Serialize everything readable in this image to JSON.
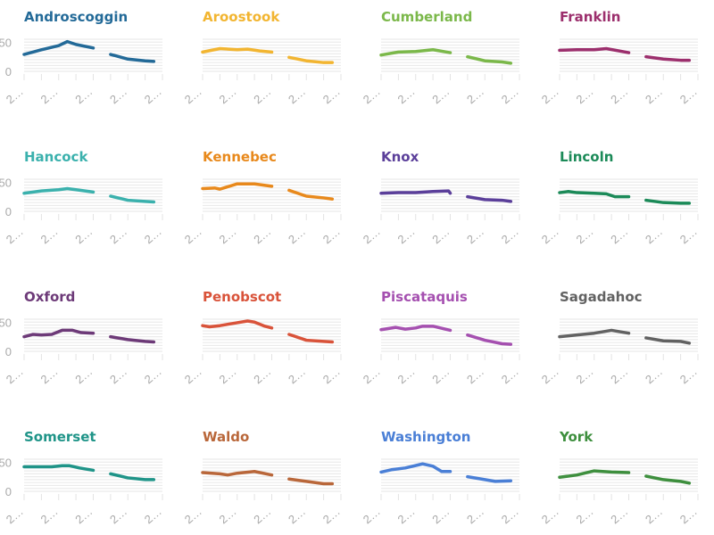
{
  "chart_data": {
    "type": "line",
    "layout": "small-multiples",
    "ylim": [
      0,
      55
    ],
    "yticks": [
      0,
      50
    ],
    "ytick_labels": [
      "0",
      "50"
    ],
    "grid": true,
    "grid_step": 5,
    "xlim": [
      0,
      8
    ],
    "xtick_labels": [
      "2…",
      "2…",
      "2…",
      "2…",
      "2…"
    ],
    "facets": [
      {
        "name": "Androscoggin",
        "color": "#236a98",
        "segments": [
          [
            [
              0,
              29
            ],
            [
              1,
              37
            ],
            [
              2,
              44
            ],
            [
              2.5,
              51
            ],
            [
              3,
              46
            ],
            [
              4,
              40
            ]
          ],
          [
            [
              5,
              29
            ],
            [
              6,
              21
            ],
            [
              7,
              18
            ],
            [
              7.5,
              17
            ]
          ]
        ]
      },
      {
        "name": "Aroostook",
        "color": "#f2b531",
        "segments": [
          [
            [
              0,
              33
            ],
            [
              1,
              39
            ],
            [
              2,
              37
            ],
            [
              2.6,
              38
            ],
            [
              3.3,
              35
            ],
            [
              4,
              33
            ]
          ],
          [
            [
              5,
              24
            ],
            [
              6,
              18
            ],
            [
              7,
              15
            ],
            [
              7.5,
              15
            ]
          ]
        ]
      },
      {
        "name": "Cumberland",
        "color": "#7bb84a",
        "segments": [
          [
            [
              0,
              28
            ],
            [
              1,
              33
            ],
            [
              2,
              34
            ],
            [
              3,
              37
            ],
            [
              4,
              32
            ]
          ],
          [
            [
              5,
              25
            ],
            [
              6,
              18
            ],
            [
              7,
              16
            ],
            [
              7.5,
              14
            ]
          ]
        ]
      },
      {
        "name": "Franklin",
        "color": "#9c2f6d",
        "segments": [
          [
            [
              0,
              36
            ],
            [
              1,
              37
            ],
            [
              2,
              37
            ],
            [
              2.7,
              39
            ],
            [
              4,
              32
            ]
          ],
          [
            [
              5,
              25
            ],
            [
              6,
              21
            ],
            [
              7,
              19
            ],
            [
              7.5,
              19
            ]
          ]
        ]
      },
      {
        "name": "Hancock",
        "color": "#3bb1ad",
        "segments": [
          [
            [
              0,
              31
            ],
            [
              1,
              35
            ],
            [
              2,
              37
            ],
            [
              2.5,
              39
            ],
            [
              3,
              37
            ],
            [
              4,
              33
            ]
          ],
          [
            [
              5,
              26
            ],
            [
              6,
              19
            ],
            [
              7,
              17
            ],
            [
              7.5,
              16
            ]
          ]
        ]
      },
      {
        "name": "Kennebec",
        "color": "#e8891c",
        "segments": [
          [
            [
              0,
              39
            ],
            [
              0.7,
              40
            ],
            [
              1,
              38
            ],
            [
              2,
              47
            ],
            [
              3,
              47
            ],
            [
              4,
              43
            ]
          ],
          [
            [
              5,
              36
            ],
            [
              6,
              26
            ],
            [
              7,
              23
            ],
            [
              7.5,
              21
            ]
          ]
        ]
      },
      {
        "name": "Knox",
        "color": "#5b3f9a",
        "segments": [
          [
            [
              0,
              31
            ],
            [
              1,
              32
            ],
            [
              2,
              32
            ],
            [
              3,
              34
            ],
            [
              3.9,
              35
            ],
            [
              4,
              31
            ]
          ],
          [
            [
              5,
              25
            ],
            [
              6,
              20
            ],
            [
              7,
              19
            ],
            [
              7.5,
              17
            ]
          ]
        ]
      },
      {
        "name": "Lincoln",
        "color": "#1b8a58",
        "segments": [
          [
            [
              0,
              32
            ],
            [
              0.5,
              34
            ],
            [
              1,
              32
            ],
            [
              2,
              31
            ],
            [
              2.7,
              30
            ],
            [
              3.2,
              25
            ],
            [
              4,
              25
            ]
          ],
          [
            [
              5,
              19
            ],
            [
              6,
              15
            ],
            [
              7,
              14
            ],
            [
              7.5,
              14
            ]
          ]
        ]
      },
      {
        "name": "Oxford",
        "color": "#6d3a78",
        "segments": [
          [
            [
              0,
              25
            ],
            [
              0.5,
              29
            ],
            [
              1,
              28
            ],
            [
              1.6,
              29
            ],
            [
              2.2,
              36
            ],
            [
              2.8,
              36
            ],
            [
              3.3,
              32
            ],
            [
              4,
              31
            ]
          ],
          [
            [
              5,
              25
            ],
            [
              6,
              20
            ],
            [
              7,
              17
            ],
            [
              7.5,
              16
            ]
          ]
        ]
      },
      {
        "name": "Penobscot",
        "color": "#d9533a",
        "segments": [
          [
            [
              0,
              44
            ],
            [
              0.4,
              42
            ],
            [
              1,
              44
            ],
            [
              2,
              49
            ],
            [
              2.6,
              52
            ],
            [
              3,
              50
            ],
            [
              3.6,
              43
            ],
            [
              4,
              40
            ]
          ],
          [
            [
              5,
              29
            ],
            [
              6,
              19
            ],
            [
              7,
              17
            ],
            [
              7.5,
              16
            ]
          ]
        ]
      },
      {
        "name": "Piscataquis",
        "color": "#a550b0",
        "segments": [
          [
            [
              0,
              37
            ],
            [
              0.85,
              41
            ],
            [
              1.4,
              38
            ],
            [
              2,
              40
            ],
            [
              2.4,
              43
            ],
            [
              3,
              43
            ],
            [
              4,
              36
            ]
          ],
          [
            [
              5,
              28
            ],
            [
              6,
              19
            ],
            [
              7,
              13
            ],
            [
              7.5,
              12
            ]
          ]
        ]
      },
      {
        "name": "Sagadahoc",
        "color": "#626262",
        "segments": [
          [
            [
              0,
              25
            ],
            [
              1,
              28
            ],
            [
              2,
              31
            ],
            [
              3,
              36
            ],
            [
              4,
              31
            ]
          ],
          [
            [
              5,
              23
            ],
            [
              6,
              18
            ],
            [
              7,
              17
            ],
            [
              7.5,
              14
            ]
          ]
        ]
      },
      {
        "name": "Somerset",
        "color": "#1f9488",
        "segments": [
          [
            [
              0,
              42
            ],
            [
              1,
              42
            ],
            [
              1.6,
              42
            ],
            [
              2.2,
              44
            ],
            [
              2.6,
              44
            ],
            [
              3.2,
              40
            ],
            [
              4,
              36
            ]
          ],
          [
            [
              5,
              30
            ],
            [
              6,
              23
            ],
            [
              7,
              20
            ],
            [
              7.5,
              20
            ]
          ]
        ]
      },
      {
        "name": "Waldo",
        "color": "#b9673a",
        "segments": [
          [
            [
              0,
              32
            ],
            [
              1,
              30
            ],
            [
              1.45,
              28
            ],
            [
              2,
              31
            ],
            [
              3,
              34
            ],
            [
              4,
              28
            ]
          ],
          [
            [
              5,
              21
            ],
            [
              6,
              17
            ],
            [
              7,
              13
            ],
            [
              7.5,
              13
            ]
          ]
        ]
      },
      {
        "name": "Washington",
        "color": "#4a7fd6",
        "segments": [
          [
            [
              0,
              33
            ],
            [
              0.6,
              37
            ],
            [
              1.4,
              40
            ],
            [
              2.4,
              47
            ],
            [
              3,
              43
            ],
            [
              3.5,
              34
            ],
            [
              4,
              34
            ]
          ],
          [
            [
              5,
              25
            ],
            [
              6,
              20
            ],
            [
              6.6,
              17
            ],
            [
              7.5,
              18
            ]
          ]
        ]
      },
      {
        "name": "York",
        "color": "#3e8f3e",
        "segments": [
          [
            [
              0,
              24
            ],
            [
              1,
              28
            ],
            [
              2,
              35
            ],
            [
              3,
              33
            ],
            [
              4,
              32
            ]
          ],
          [
            [
              5,
              26
            ],
            [
              6,
              20
            ],
            [
              7,
              17
            ],
            [
              7.5,
              14
            ]
          ]
        ]
      }
    ]
  }
}
